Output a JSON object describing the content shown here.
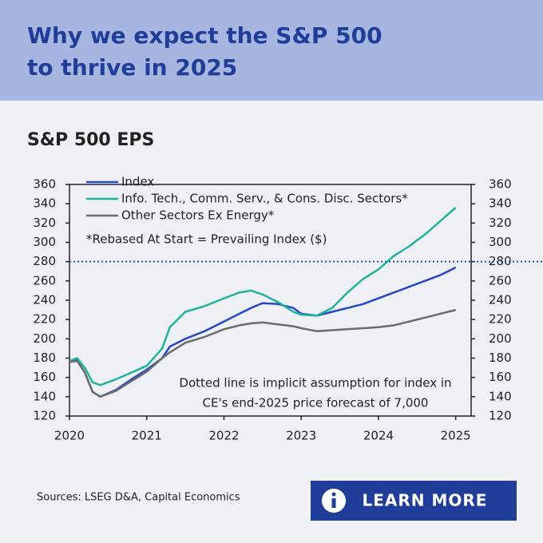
{
  "header": {
    "title": [
      "Why we expect the S&P 500",
      "to thrive in 2025"
    ]
  },
  "chart_data": {
    "type": "line",
    "title": "S&P 500 EPS",
    "note": "*Rebased At Start = Prevailing Index ($)",
    "annotation": [
      "Dotted line is implicit assumption for index in",
      "CE's end-2025 price forecast of 7,000"
    ],
    "x": [
      2020,
      2020.1,
      2020.2,
      2020.3,
      2020.4,
      2020.6,
      2020.8,
      2021,
      2021.2,
      2021.3,
      2021.5,
      2021.75,
      2022,
      2022.2,
      2022.35,
      2022.5,
      2022.7,
      2022.9,
      2023,
      2023.2,
      2023.4,
      2023.6,
      2023.8,
      2024,
      2024.2,
      2024.4,
      2024.6,
      2024.8,
      2025
    ],
    "series": [
      {
        "name": "Index",
        "color": "#2747c9",
        "values": [
          176,
          178,
          165,
          145,
          140,
          147,
          158,
          168,
          180,
          192,
          200,
          208,
          218,
          226,
          232,
          237,
          236,
          232,
          226,
          224,
          228,
          232,
          236,
          242,
          248,
          254,
          260,
          266,
          274
        ]
      },
      {
        "name": "Info. Tech., Comm. Serv., & Cons. Disc. Sectors*",
        "color": "#1fb39b",
        "values": [
          177,
          180,
          170,
          155,
          152,
          158,
          165,
          172,
          190,
          212,
          228,
          234,
          242,
          248,
          250,
          246,
          238,
          228,
          225,
          224,
          232,
          248,
          262,
          272,
          286,
          296,
          308,
          322,
          336
        ]
      },
      {
        "name": "Other Sectors Ex Energy*",
        "color": "#6b6b6b",
        "values": [
          176,
          177,
          165,
          145,
          140,
          146,
          156,
          166,
          180,
          186,
          196,
          202,
          210,
          214,
          216,
          217,
          215,
          213,
          211,
          208,
          209,
          210,
          211,
          212,
          214,
          218,
          222,
          226,
          230
        ]
      }
    ],
    "reference_line": {
      "value": 280,
      "color": "#2747c9"
    },
    "xlim": [
      2020,
      2025.2
    ],
    "xticks": [
      2020,
      2021,
      2022,
      2023,
      2024,
      2025
    ],
    "ylim": [
      120,
      360
    ],
    "yticks": [
      120,
      140,
      160,
      180,
      200,
      220,
      240,
      260,
      280,
      300,
      320,
      340,
      360
    ],
    "y2lim": [
      120,
      360
    ],
    "y2ticks": [
      120,
      140,
      160,
      180,
      200,
      220,
      240,
      260,
      280,
      300,
      320,
      340,
      360
    ],
    "source": "Sources:  LSEG D&A, Capital Economics"
  },
  "button": {
    "label": "LEARN MORE"
  }
}
